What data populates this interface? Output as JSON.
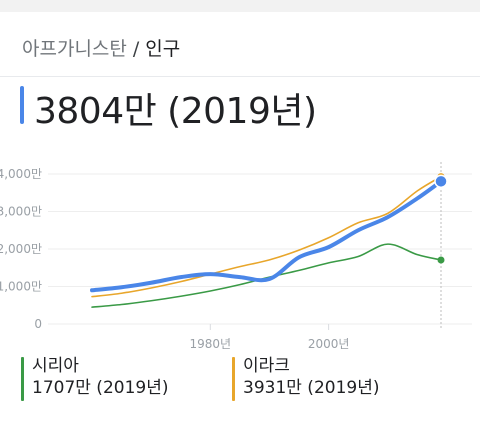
{
  "breadcrumb": {
    "country": "아프가니스탄",
    "separator": "/",
    "topic": "인구"
  },
  "headline": {
    "value": "3804만 (2019년)"
  },
  "colors": {
    "afghanistan": "#4a86e8",
    "syria": "#3a9a46",
    "iraq": "#e8a62b",
    "gridline": "#eeeeee",
    "axis_text": "#9aa0a6"
  },
  "legend": [
    {
      "name": "시리아",
      "value": "1707만 (2019년)"
    },
    {
      "name": "이라크",
      "value": "3931만 (2019년)"
    }
  ],
  "chart_data": {
    "type": "line",
    "x": [
      1960,
      1965,
      1970,
      1975,
      1980,
      1985,
      1990,
      1995,
      2000,
      2005,
      2010,
      2015,
      2019
    ],
    "series": [
      {
        "name": "아프가니스탄",
        "values": [
          900,
          980,
          1100,
          1250,
          1330,
          1250,
          1200,
          1780,
          2050,
          2500,
          2850,
          3350,
          3804
        ]
      },
      {
        "name": "시리아",
        "values": [
          450,
          520,
          620,
          740,
          880,
          1050,
          1250,
          1430,
          1630,
          1800,
          2130,
          1850,
          1707
        ]
      },
      {
        "name": "이라크",
        "values": [
          730,
          820,
          960,
          1130,
          1330,
          1530,
          1710,
          1970,
          2300,
          2700,
          2950,
          3550,
          3931
        ]
      }
    ],
    "yticks": [
      0,
      1000,
      2000,
      3000,
      4000
    ],
    "ytick_labels": [
      "0",
      "1,000만",
      "2,000만",
      "3,000만",
      "4,000만"
    ],
    "xticks": [
      1980,
      2000
    ],
    "xtick_labels": [
      "1980년",
      "2000년"
    ],
    "xlim": [
      1960,
      2019
    ],
    "ylim": [
      0,
      4000
    ],
    "grid": true
  }
}
